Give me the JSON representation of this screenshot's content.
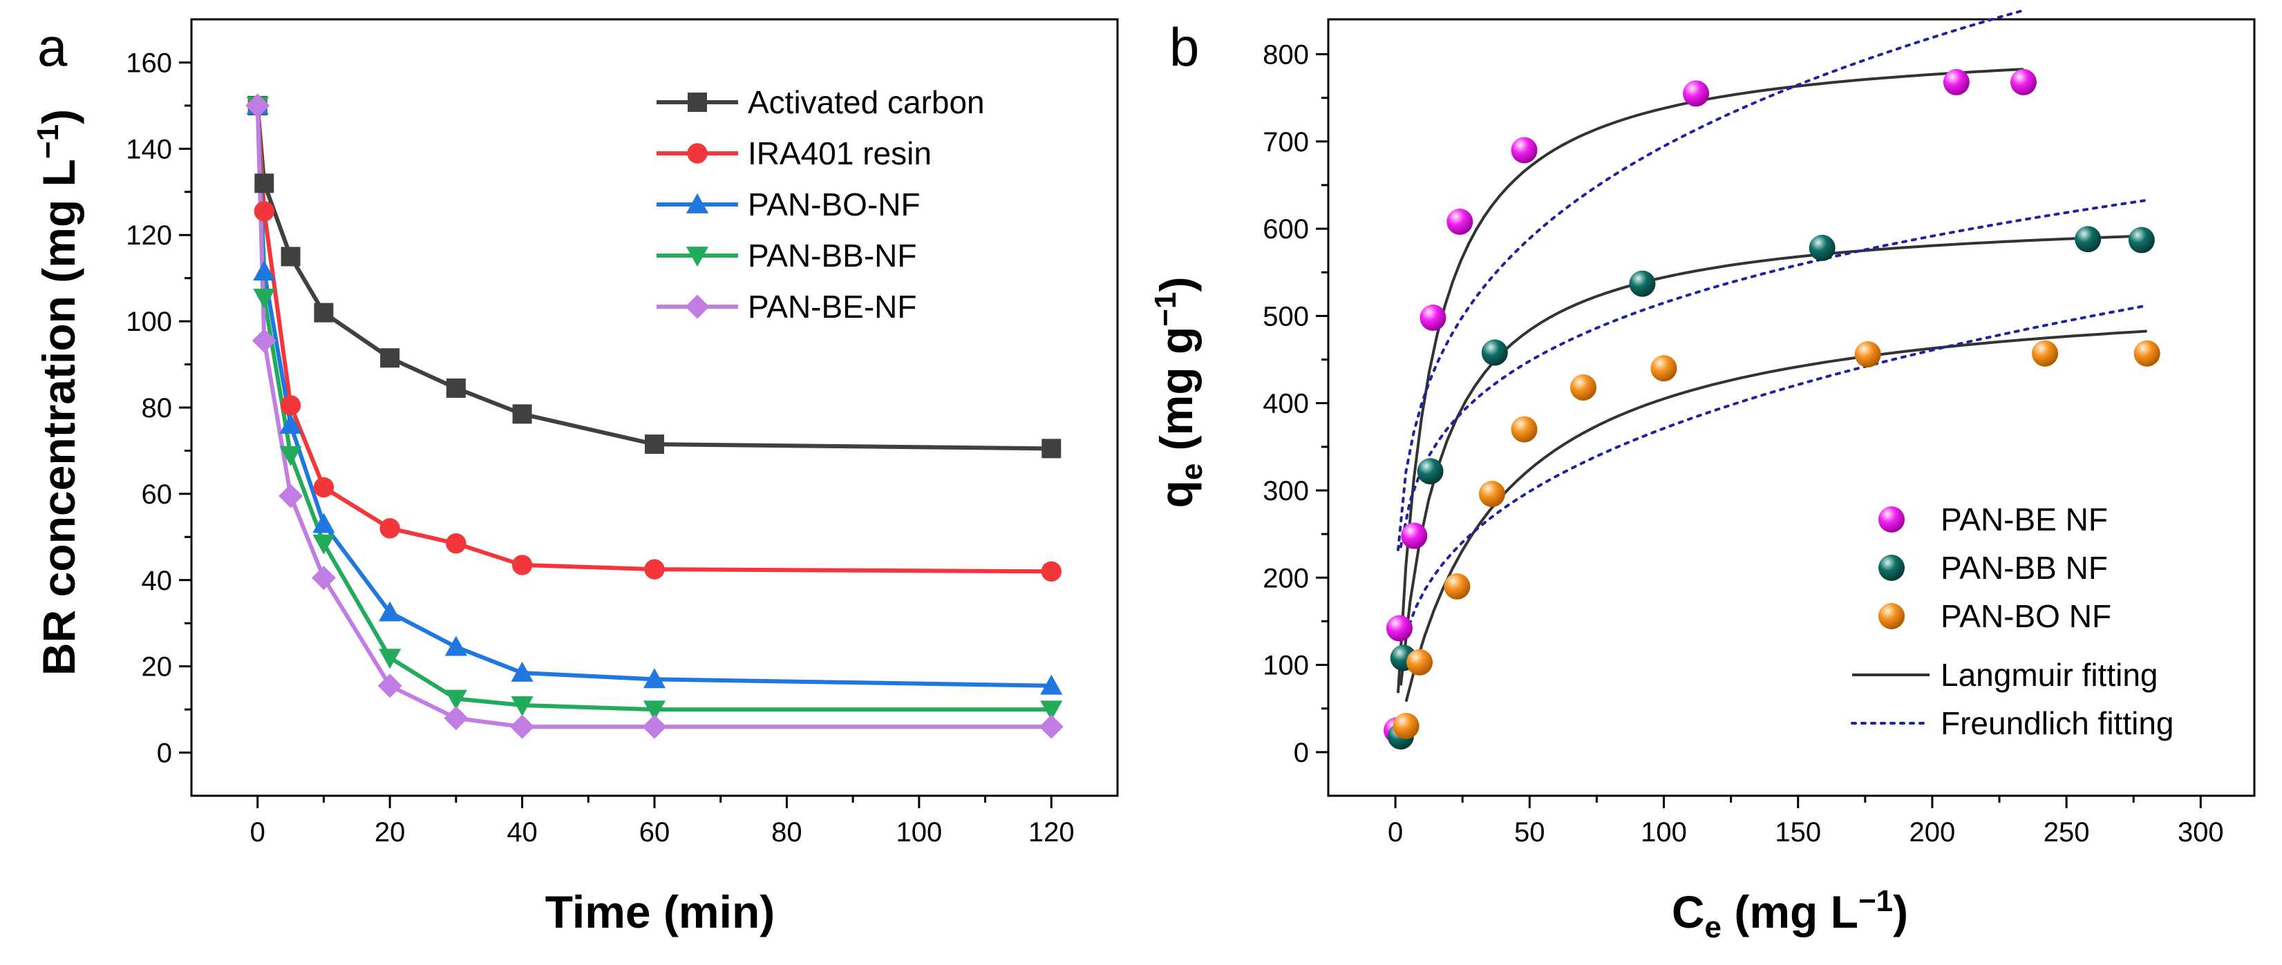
{
  "chart_data": [
    {
      "type": "line",
      "panel_label": "a",
      "xlabel": "Time (min)",
      "ylabel_main": "BR concentration (mg L",
      "ylabel_sup": "−1",
      "ylabel_end": ")",
      "xlim": [
        -10,
        130
      ],
      "ylim": [
        -10,
        170
      ],
      "xticks": [
        0,
        20,
        40,
        60,
        80,
        100,
        120
      ],
      "yticks": [
        0,
        20,
        40,
        60,
        80,
        100,
        120,
        140,
        160
      ],
      "legend_position": "top-right",
      "series": [
        {
          "name": "Activated carbon",
          "color": "#404040",
          "marker": "square",
          "x": [
            0,
            1,
            5,
            10,
            20,
            30,
            40,
            60,
            120
          ],
          "y": [
            150,
            132,
            115,
            102,
            91.5,
            84.5,
            78.5,
            71.5,
            70.5
          ]
        },
        {
          "name": "IRA401 resin",
          "color": "#f2363a",
          "marker": "circle",
          "x": [
            0,
            1,
            5,
            10,
            20,
            30,
            40,
            60,
            120
          ],
          "y": [
            150,
            125.5,
            80.5,
            61.5,
            52,
            48.5,
            43.5,
            42.5,
            42
          ]
        },
        {
          "name": "PAN-BO-NF",
          "color": "#1f77e0",
          "marker": "triangle-up",
          "x": [
            0,
            1,
            5,
            10,
            20,
            30,
            40,
            60,
            120
          ],
          "y": [
            150,
            111.5,
            76,
            53,
            32.5,
            24.5,
            18.5,
            17,
            15.5
          ]
        },
        {
          "name": "PAN-BB-NF",
          "color": "#22ab5a",
          "marker": "triangle-down",
          "x": [
            0,
            1,
            5,
            10,
            20,
            30,
            40,
            60,
            120
          ],
          "y": [
            150,
            105.5,
            69,
            48.5,
            22,
            12.5,
            11,
            10,
            10
          ]
        },
        {
          "name": "PAN-BE-NF",
          "color": "#c07de3",
          "marker": "diamond",
          "x": [
            0,
            1,
            5,
            10,
            20,
            30,
            40,
            60,
            120
          ],
          "y": [
            150,
            95.5,
            59.5,
            40.5,
            15.5,
            8,
            6,
            6,
            6
          ]
        }
      ]
    },
    {
      "type": "scatter",
      "panel_label": "b",
      "xlabel_main": "C",
      "xlabel_sub": "e",
      "xlabel_end": " (mg L",
      "xlabel_sup": "−1",
      "xlabel_close": ")",
      "ylabel_main": "q",
      "ylabel_sub": "e",
      "ylabel_end": " (mg g",
      "ylabel_sup": "−1",
      "ylabel_close": ")",
      "xlim": [
        -25,
        320
      ],
      "ylim": [
        -50,
        840
      ],
      "xticks": [
        0,
        50,
        100,
        150,
        200,
        250,
        300
      ],
      "yticks": [
        0,
        100,
        200,
        300,
        400,
        500,
        600,
        700,
        800
      ],
      "legend_position": "bottom-right",
      "series": [
        {
          "name": "PAN-BE NF",
          "color": "#f020f0",
          "x": [
            0.5,
            1.5,
            7,
            14,
            24,
            48,
            112,
            209,
            234
          ],
          "y": [
            25,
            142,
            248,
            498,
            608,
            690,
            755,
            768,
            768
          ]
        },
        {
          "name": "PAN-BB NF",
          "color": "#0e6e66",
          "x": [
            2,
            3,
            13,
            37,
            92,
            159,
            258,
            278
          ],
          "y": [
            18,
            108,
            322,
            458,
            537,
            578,
            588,
            587
          ]
        },
        {
          "name": "PAN-BO NF",
          "color": "#f5911e",
          "x": [
            4,
            9,
            23,
            36,
            48,
            70,
            100,
            176,
            242,
            280
          ],
          "y": [
            30,
            103,
            190,
            296,
            370,
            418,
            440,
            456,
            457,
            457
          ]
        }
      ],
      "fits": [
        {
          "name": "Langmuir fitting",
          "style": "solid",
          "color": "#333333"
        },
        {
          "name": "Freundlich fitting",
          "style": "dotted",
          "color": "#2222a0"
        }
      ],
      "langmuir_curves": [
        {
          "series": "PAN-BE NF",
          "qmax": 820,
          "KL": 0.09,
          "xmin": 1,
          "xmax": 234
        },
        {
          "series": "PAN-BB NF",
          "qmax": 622,
          "KL": 0.07,
          "xmin": 2,
          "xmax": 279
        },
        {
          "series": "PAN-BO NF",
          "qmax": 540,
          "KL": 0.03,
          "xmin": 4,
          "xmax": 280
        }
      ],
      "freundlich_curves": [
        {
          "series": "PAN-BE NF",
          "KF": 232,
          "n": 4.2,
          "xmin": 1,
          "xmax": 234
        },
        {
          "series": "PAN-BB NF",
          "KF": 205,
          "n": 5.0,
          "xmin": 2,
          "xmax": 279
        },
        {
          "series": "PAN-BO NF",
          "KF": 88,
          "n": 3.2,
          "xmin": 4,
          "xmax": 280
        }
      ]
    }
  ]
}
